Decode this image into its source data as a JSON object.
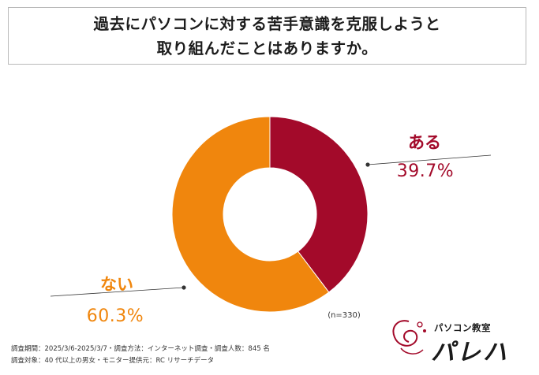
{
  "title": {
    "line1": "過去にパソコンに対する苦手意識を克服しようと",
    "line2": "取り組んだことはありますか。"
  },
  "chart_data": {
    "type": "pie",
    "donut": true,
    "labels": [
      "ある",
      "ない"
    ],
    "values": [
      39.7,
      60.3
    ],
    "value_labels": [
      "39.7%",
      "60.3%"
    ],
    "colors": [
      "#a30a2a",
      "#f0860d"
    ],
    "sample_note": "(n=330)"
  },
  "colors": {
    "yes": "#a30a2a",
    "no": "#f0860d",
    "leader": "#333333"
  },
  "footer": {
    "line1": "調査期間：2025/3/6-2025/3/7・調査方法：インターネット調査・調査人数：845 名",
    "line2": "調査対象：40 代以上の男女・モニター提供元：RC リサーチデータ"
  },
  "logo": {
    "subtitle": "パソコン教室",
    "name": "パレハ"
  }
}
